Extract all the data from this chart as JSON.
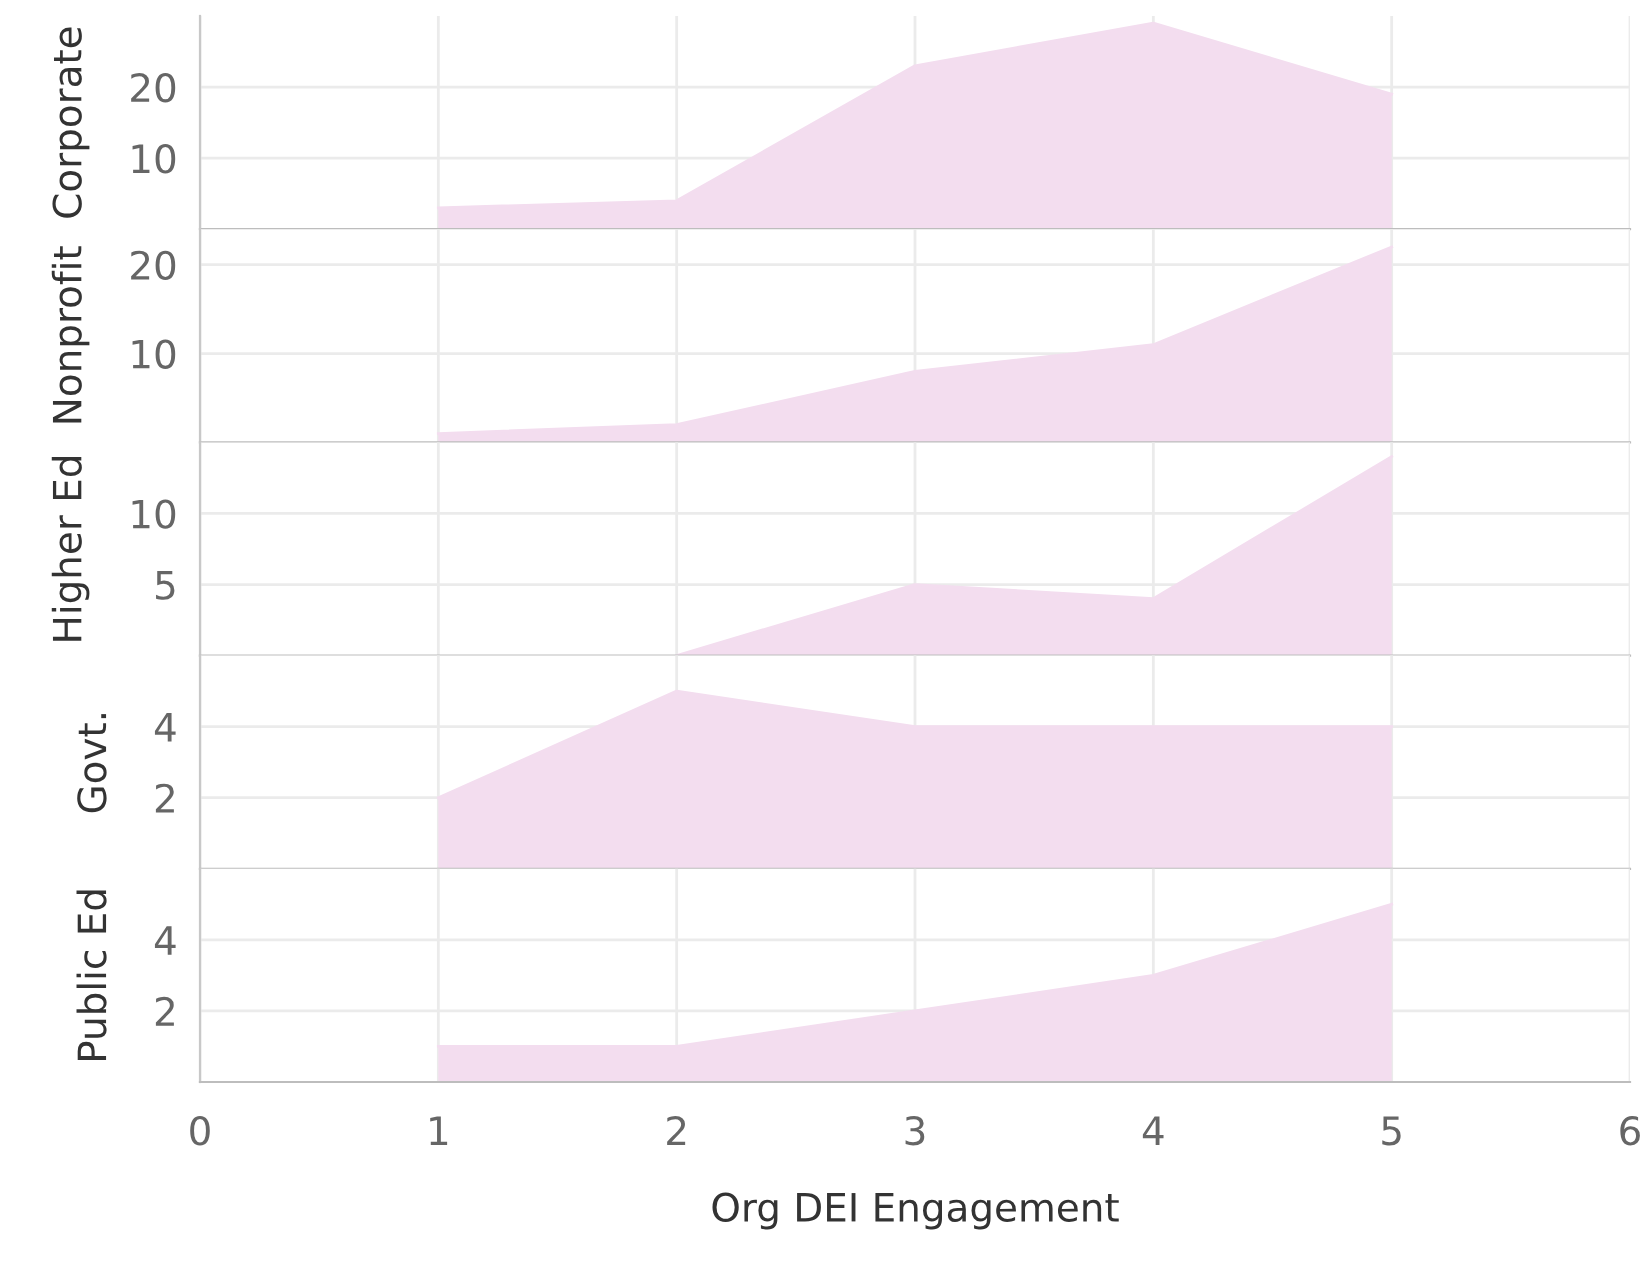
{
  "chart_data": [
    {
      "type": "area",
      "ylabel": "Corporate",
      "x": [
        1,
        2,
        3,
        4,
        5
      ],
      "values": [
        3,
        4,
        23,
        29,
        19
      ],
      "color": "#f3ddef",
      "xlim": [
        0,
        6
      ],
      "ylim": [
        0,
        30
      ],
      "yticks": [
        10,
        20
      ],
      "grid": true,
      "tick_labels": "y"
    },
    {
      "type": "area",
      "ylabel": "Nonprofit",
      "x": [
        1,
        2,
        3,
        4,
        5
      ],
      "values": [
        1,
        2,
        8,
        11,
        22
      ],
      "color": "#f3ddef",
      "xlim": [
        0,
        6
      ],
      "ylim": [
        0,
        24
      ],
      "yticks": [
        10,
        20
      ],
      "grid": true,
      "tick_labels": "y"
    },
    {
      "type": "area",
      "ylabel": "Higher Ed",
      "x": [
        2,
        3,
        4,
        5
      ],
      "values": [
        0,
        5,
        4,
        14
      ],
      "color": "#f3ddef",
      "xlim": [
        0,
        6
      ],
      "ylim": [
        0,
        15
      ],
      "yticks": [
        5,
        10
      ],
      "grid": true,
      "tick_labels": "y"
    },
    {
      "type": "area",
      "ylabel": "Govt.",
      "x": [
        1,
        2,
        3,
        4,
        5
      ],
      "values": [
        2,
        5,
        4,
        4,
        4
      ],
      "color": "#f3ddef",
      "xlim": [
        0,
        6
      ],
      "ylim": [
        0,
        6
      ],
      "yticks": [
        2,
        4
      ],
      "grid": true,
      "tick_labels": "y"
    },
    {
      "type": "area",
      "ylabel": "Public Ed",
      "xlabel": "Org DEI Engagement",
      "x": [
        1,
        2,
        3,
        4,
        5
      ],
      "values": [
        1,
        1,
        2,
        3,
        5
      ],
      "color": "#f3ddef",
      "xlim": [
        0,
        6
      ],
      "ylim": [
        0,
        6
      ],
      "yticks": [
        2,
        4
      ],
      "xticks": [
        0,
        1,
        2,
        3,
        4,
        5,
        6
      ],
      "grid": true
    }
  ]
}
